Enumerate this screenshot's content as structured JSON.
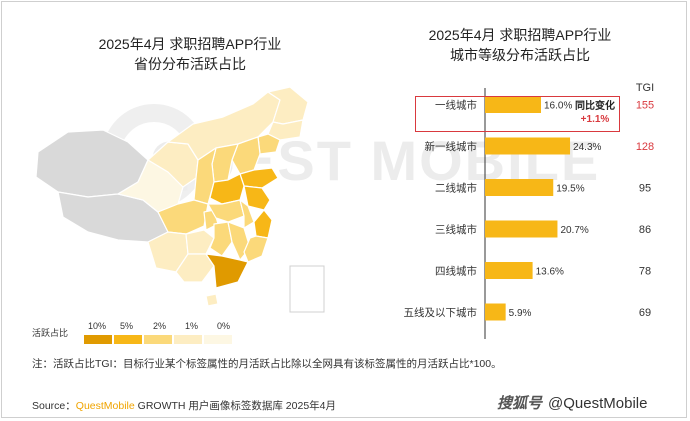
{
  "left_title_line1": "2025年4月 求职招聘APP行业",
  "left_title_line2": "省份分布活跃占比",
  "right_title_line1": "2025年4月 求职招聘APP行业",
  "right_title_line2": "城市等级分布活跃占比",
  "watermark_text": "QUEST MOBILE",
  "legend": {
    "label": "活跃占比",
    "ticks": [
      "10%",
      "5%",
      "2%",
      "1%",
      "0%"
    ],
    "colors": [
      "#e09a00",
      "#f7b717",
      "#fbd97a",
      "#fdedc2",
      "#fdf7e3"
    ]
  },
  "map_colors": {
    "no_data": "#d9d9d9",
    "level_10": "#e09a00",
    "level_5": "#f7b717",
    "level_2": "#fbd97a",
    "level_1": "#fdedc2",
    "level_0": "#fdf7e3"
  },
  "tgi_header": "TGI",
  "callout": {
    "title": "同比变化",
    "value": "+1.1%"
  },
  "chart_data": {
    "type": "bar",
    "orientation": "horizontal",
    "title": "2025年4月 求职招聘APP行业 城市等级分布活跃占比",
    "categories": [
      "一线城市",
      "新一线城市",
      "二线城市",
      "三线城市",
      "四线城市",
      "五线及以下城市"
    ],
    "values": [
      16.0,
      24.3,
      19.5,
      20.7,
      13.6,
      5.9
    ],
    "value_labels": [
      "16.0%",
      "24.3%",
      "19.5%",
      "20.7%",
      "13.6%",
      "5.9%"
    ],
    "unit": "%",
    "tgi": [
      {
        "value": "155",
        "color": "#d9393e"
      },
      {
        "value": "128",
        "color": "#d9393e"
      },
      {
        "value": "95",
        "color": "#333333"
      },
      {
        "value": "86",
        "color": "#333333"
      },
      {
        "value": "78",
        "color": "#333333"
      },
      {
        "value": "69",
        "color": "#333333"
      }
    ],
    "bar_color": "#f7b717",
    "grid": false,
    "legend": "none"
  },
  "note": "注：活跃占比TGI：目标行业某个标签属性的月活跃占比除以全网具有该标签属性的月活跃占比*100。",
  "source_prefix": "Source：",
  "source_brand": "QuestMobile",
  "source_rest": " GROWTH 用户画像标签数据库 2025年4月",
  "brand_channel": "搜狐号",
  "brand_handle": "@QuestMobile"
}
